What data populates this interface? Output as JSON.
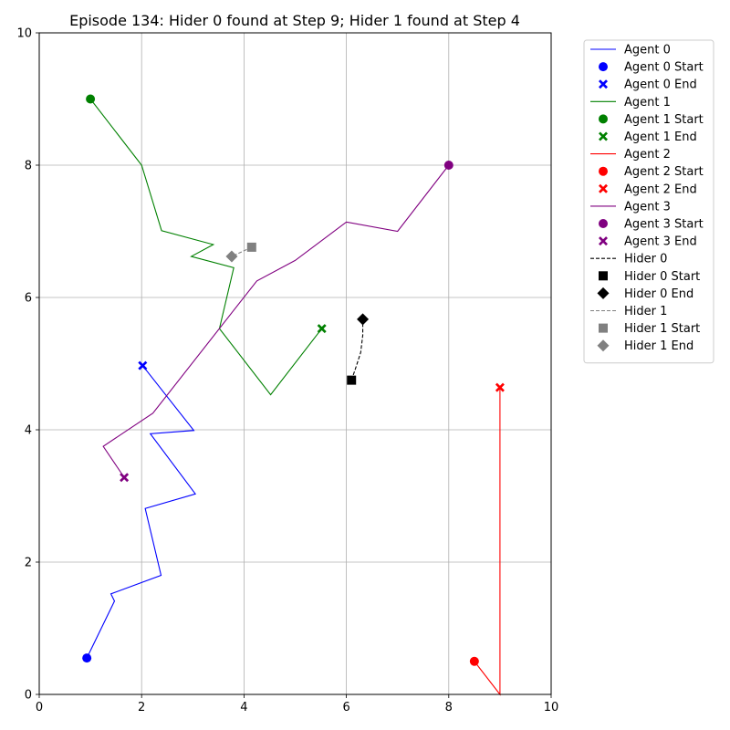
{
  "chart_data": {
    "type": "line",
    "title": "Episode 134: Hider 0 found at Step 9; Hider 1 found at Step 4",
    "xlabel": "",
    "ylabel": "",
    "xlim": [
      0,
      10
    ],
    "ylim": [
      0,
      10
    ],
    "x_ticks": [
      0,
      2,
      4,
      6,
      8,
      10
    ],
    "y_ticks": [
      0,
      2,
      4,
      6,
      8,
      10
    ],
    "grid": true,
    "legend_position": "outside-right",
    "series": [
      {
        "name": "Agent 0",
        "color": "#0000ff",
        "style": "solid",
        "start_label": "Agent 0 Start",
        "end_label": "Agent 0 End",
        "start_marker": "circle",
        "end_marker": "x",
        "points": [
          [
            0.93,
            0.55
          ],
          [
            1.47,
            1.41
          ],
          [
            1.4,
            1.52
          ],
          [
            2.38,
            1.8
          ],
          [
            2.07,
            2.81
          ],
          [
            3.05,
            3.03
          ],
          [
            2.17,
            3.94
          ],
          [
            3.02,
            3.99
          ],
          [
            2.02,
            4.97
          ]
        ]
      },
      {
        "name": "Agent 1",
        "color": "#008000",
        "style": "solid",
        "start_label": "Agent 1 Start",
        "end_label": "Agent 1 End",
        "start_marker": "circle",
        "end_marker": "x",
        "points": [
          [
            1.0,
            9.0
          ],
          [
            2.0,
            8.0
          ],
          [
            2.39,
            7.01
          ],
          [
            3.4,
            6.8
          ],
          [
            2.97,
            6.62
          ],
          [
            3.8,
            6.45
          ],
          [
            3.52,
            5.53
          ],
          [
            4.52,
            4.53
          ],
          [
            5.52,
            5.53
          ]
        ]
      },
      {
        "name": "Agent 2",
        "color": "#ff0000",
        "style": "solid",
        "start_label": "Agent 2 Start",
        "end_label": "Agent 2 End",
        "start_marker": "circle",
        "end_marker": "x",
        "points": [
          [
            8.5,
            0.5
          ],
          [
            9.0,
            0.0
          ],
          [
            9.0,
            4.64
          ]
        ]
      },
      {
        "name": "Agent 3",
        "color": "#800080",
        "style": "solid",
        "start_label": "Agent 3 Start",
        "end_label": "Agent 3 End",
        "start_marker": "circle",
        "end_marker": "x",
        "points": [
          [
            8.0,
            8.0
          ],
          [
            7.0,
            7.0
          ],
          [
            6.0,
            7.14
          ],
          [
            5.0,
            6.56
          ],
          [
            4.25,
            6.25
          ],
          [
            2.22,
            4.25
          ],
          [
            1.25,
            3.75
          ],
          [
            1.66,
            3.28
          ]
        ]
      },
      {
        "name": "Hider 0",
        "color": "#000000",
        "style": "dashed",
        "start_label": "Hider 0 Start",
        "end_label": "Hider 0 End",
        "start_marker": "square",
        "end_marker": "diamond",
        "points": [
          [
            6.1,
            4.75
          ],
          [
            6.18,
            4.93
          ],
          [
            6.28,
            5.17
          ],
          [
            6.32,
            5.43
          ],
          [
            6.32,
            5.67
          ]
        ]
      },
      {
        "name": "Hider 1",
        "color": "#808080",
        "style": "dashed",
        "start_label": "Hider 1 Start",
        "end_label": "Hider 1 End",
        "start_marker": "square",
        "end_marker": "diamond",
        "points": [
          [
            4.15,
            6.76
          ],
          [
            3.76,
            6.62
          ]
        ]
      }
    ]
  }
}
